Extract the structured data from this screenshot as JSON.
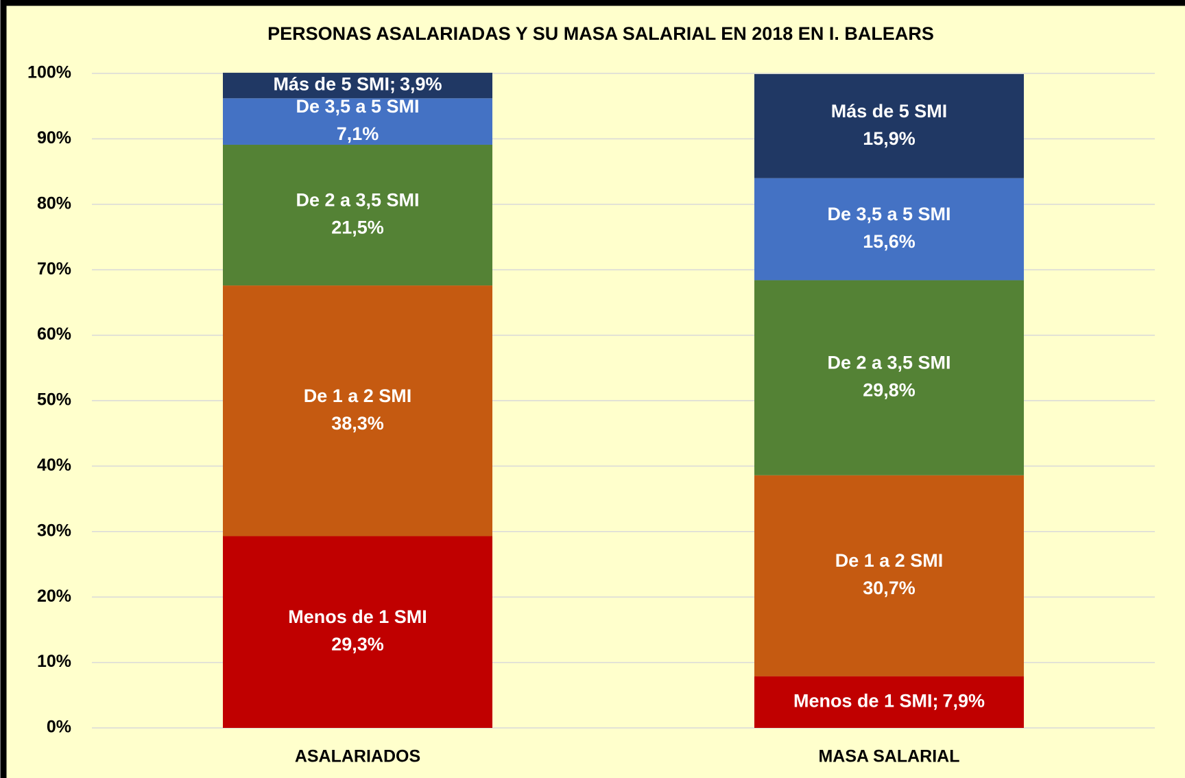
{
  "chart_data": {
    "type": "stacked_bar",
    "title": "PERSONAS ASALARIADAS Y SU MASA SALARIAL EN 2018 EN I. BALEARS",
    "categories": [
      "ASALARIADOS",
      "MASA SALARIAL"
    ],
    "series": [
      {
        "name": "Menos de 1 SMI",
        "color": "#c00000",
        "values": [
          29.3,
          7.9
        ],
        "value_labels": [
          "29,3%",
          "7,9%"
        ]
      },
      {
        "name": "De 1 a 2 SMI",
        "color": "#c55a11",
        "values": [
          38.3,
          30.7
        ],
        "value_labels": [
          "38,3%",
          "30,7%"
        ]
      },
      {
        "name": "De 2 a 3,5 SMI",
        "color": "#548235",
        "values": [
          21.5,
          29.8
        ],
        "value_labels": [
          "21,5%",
          "29,8%"
        ]
      },
      {
        "name": "De 3,5 a 5 SMI",
        "color": "#4472c4",
        "values": [
          7.1,
          15.6
        ],
        "value_labels": [
          "7,1%",
          "15,6%"
        ]
      },
      {
        "name": "Más de 5 SMI",
        "color": "#203864",
        "values": [
          3.9,
          15.9
        ],
        "value_labels": [
          "3,9%",
          "15,9%"
        ]
      }
    ],
    "label_separator": ";",
    "ylim": [
      0,
      100
    ],
    "yticks": [
      {
        "value": 0,
        "label": "0%"
      },
      {
        "value": 10,
        "label": "10%"
      },
      {
        "value": 20,
        "label": "20%"
      },
      {
        "value": 30,
        "label": "30%"
      },
      {
        "value": 40,
        "label": "40%"
      },
      {
        "value": 50,
        "label": "50%"
      },
      {
        "value": 60,
        "label": "60%"
      },
      {
        "value": 70,
        "label": "70%"
      },
      {
        "value": 80,
        "label": "80%"
      },
      {
        "value": 90,
        "label": "90%"
      },
      {
        "value": 100,
        "label": "100%"
      }
    ],
    "grid": true
  }
}
